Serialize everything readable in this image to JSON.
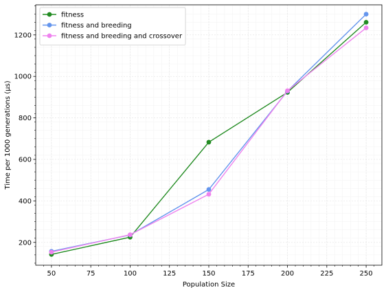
{
  "chart_data": {
    "type": "line",
    "title": "",
    "xlabel": "Population Size",
    "ylabel": "Time per 1000 generations (µs)",
    "x": [
      50,
      100,
      150,
      200,
      250
    ],
    "xlim": [
      40,
      260
    ],
    "ylim": [
      90,
      1345
    ],
    "xticks": [
      50,
      75,
      100,
      125,
      150,
      175,
      200,
      225,
      250
    ],
    "yticks": [
      200,
      400,
      600,
      800,
      1000,
      1200
    ],
    "grid": true,
    "legend_position": "top-left",
    "series": [
      {
        "name": "fitness",
        "color": "#228B22",
        "values": [
          142,
          225,
          683,
          923,
          1261
        ]
      },
      {
        "name": "fitness and breeding",
        "color": "#6495ED",
        "values": [
          157,
          236,
          455,
          929,
          1300
        ]
      },
      {
        "name": "fitness and breeding and crossover",
        "color": "#EE82EE",
        "values": [
          153,
          237,
          432,
          931,
          1234
        ]
      }
    ]
  }
}
